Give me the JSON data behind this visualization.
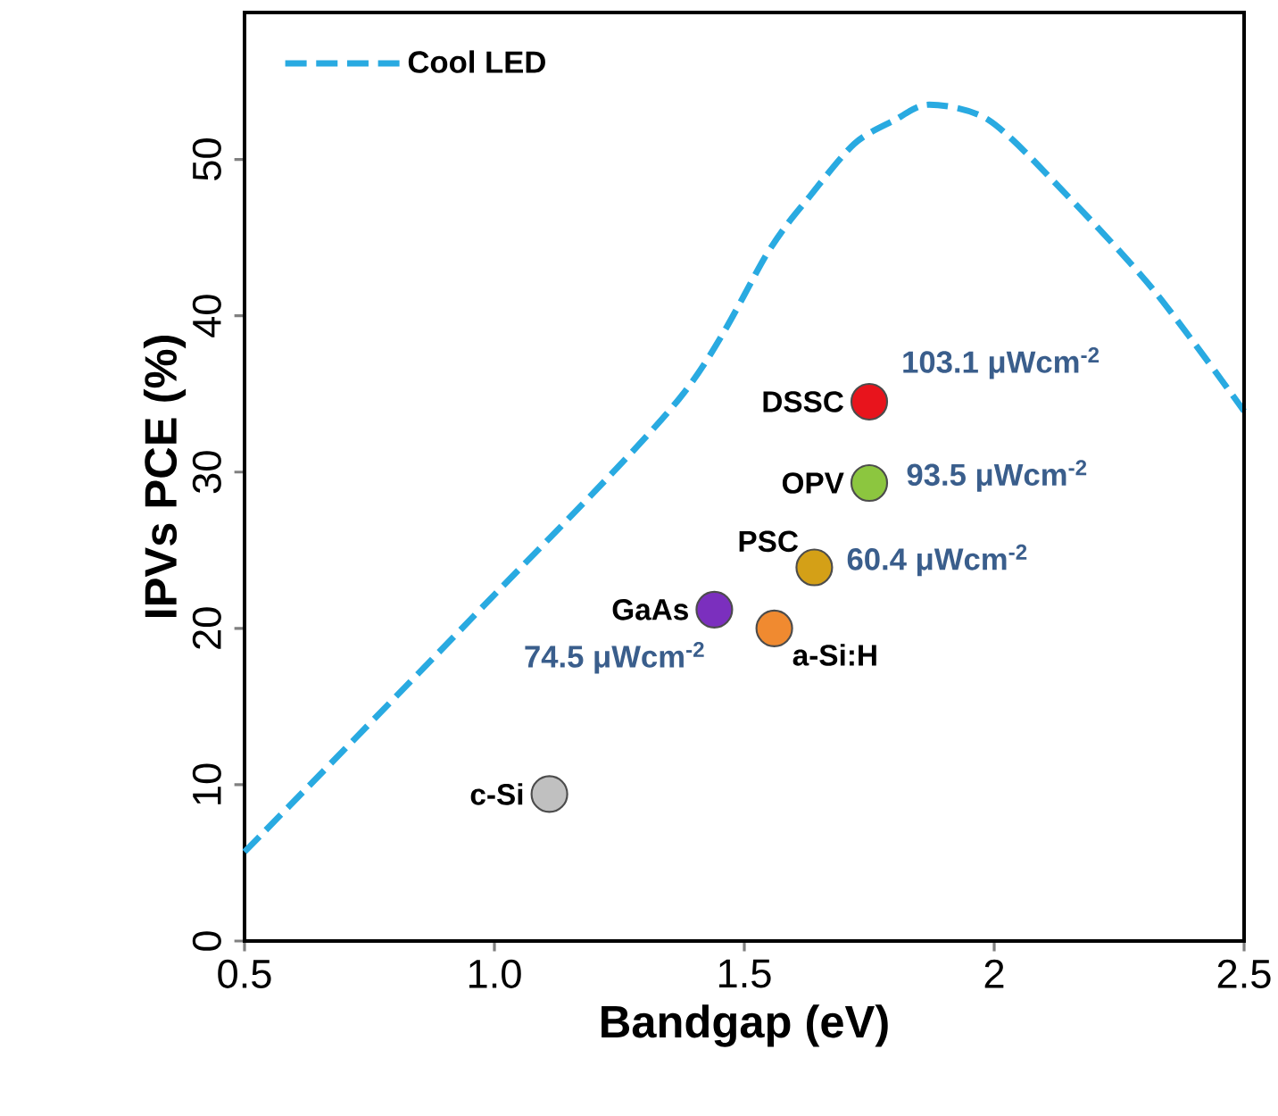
{
  "chart_data": {
    "type": "scatter",
    "xlabel": "Bandgap (eV)",
    "ylabel": "IPVs PCE (%)",
    "xlim": [
      0.5,
      2.5
    ],
    "ylim": [
      0,
      59.4
    ],
    "xticks": [
      0.5,
      {
        "value": 1,
        "label": "1.0"
      },
      1.5,
      2,
      2.5
    ],
    "yticks": [
      0,
      10,
      20,
      30,
      40,
      50
    ],
    "grid": false,
    "legend": "top left",
    "series": [
      {
        "name": "Cool LED",
        "type": "line",
        "color": "#29aae1",
        "line_style": "dashed",
        "marker": "none",
        "x": [
          0.5,
          0.95,
          1.37,
          1.55,
          1.63,
          1.72,
          1.8,
          1.87,
          1.99,
          2.14,
          2.32,
          2.5
        ],
        "values": [
          5.7,
          20.5,
          34.7,
          44.2,
          47.6,
          51.0,
          52.5,
          53.5,
          52.5,
          47.9,
          41.6,
          33.9
        ]
      },
      {
        "name": "DSSC",
        "color": "#e8141c",
        "marker": "circle",
        "x": [
          1.75
        ],
        "values": [
          34.5
        ]
      },
      {
        "name": "OPV",
        "color": "#8cc63f",
        "marker": "circle",
        "x": [
          1.75
        ],
        "values": [
          29.3
        ]
      },
      {
        "name": "PSC",
        "color": "#d4a017",
        "marker": "circle",
        "x": [
          1.64
        ],
        "values": [
          23.9
        ]
      },
      {
        "name": "GaAs",
        "color": "#7b2fbe",
        "marker": "circle",
        "x": [
          1.44
        ],
        "values": [
          21.2
        ]
      },
      {
        "name": "a-Si:H",
        "color": "#f08a30",
        "marker": "circle",
        "x": [
          1.56
        ],
        "values": [
          20.0
        ]
      },
      {
        "name": "c-Si",
        "color": "#c0c0c0",
        "marker": "circle",
        "x": [
          1.11
        ],
        "values": [
          9.4
        ]
      }
    ],
    "annotations": [
      {
        "text": "103.1 μWcm$^{-2}$",
        "x": 1.75,
        "y": 34.5
      },
      {
        "text": "93.5 μWcm$^{-2}$",
        "x": 1.75,
        "y": 29.3
      },
      {
        "text": "60.4 μWcm$^{-2}$",
        "x": 1.64,
        "y": 23.9
      },
      {
        "text": "74.5 μWcm$^{-2}$",
        "x": 1.44,
        "y": 21.2
      }
    ]
  }
}
